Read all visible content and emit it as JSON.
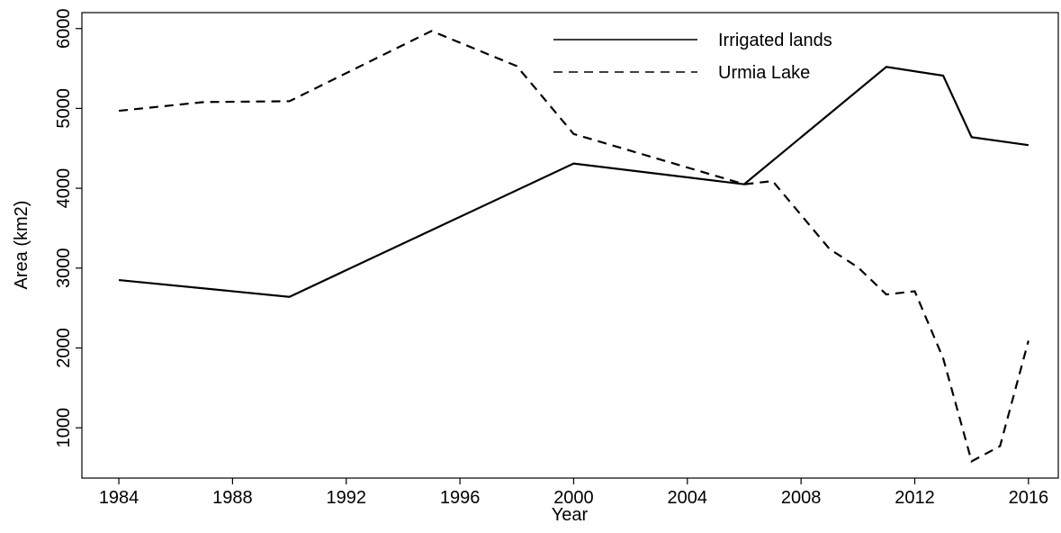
{
  "chart_data": {
    "type": "line",
    "xlabel": "Year",
    "ylabel": "Area (km2)",
    "xlim": [
      1982.7,
      2017.05
    ],
    "xticks": [
      1984,
      1988,
      1992,
      1996,
      2000,
      2004,
      2008,
      2012,
      2016
    ],
    "ylim": [
      370,
      6200
    ],
    "yticks": [
      1000,
      2000,
      3000,
      4000,
      5000,
      6000
    ],
    "grid": false,
    "legend": "top-center",
    "series": [
      {
        "name": "Irrigated lands",
        "color": "#000000",
        "dash": false,
        "x": [
          1984,
          1990,
          2000,
          2006,
          2011,
          2013,
          2014,
          2016
        ],
        "values": [
          2850,
          2640,
          4310,
          4050,
          5520,
          5410,
          4640,
          4540
        ]
      },
      {
        "name": "Urmia Lake",
        "color": "#000000",
        "dash": true,
        "x": [
          1984,
          1987,
          1990,
          1995,
          1998,
          2000,
          2006,
          2007,
          2009,
          2010,
          2011,
          2012,
          2013,
          2014,
          2015,
          2016
        ],
        "values": [
          4970,
          5080,
          5090,
          5970,
          5530,
          4680,
          4050,
          4090,
          3240,
          3010,
          2670,
          2710,
          1870,
          580,
          770,
          2090
        ]
      }
    ]
  }
}
